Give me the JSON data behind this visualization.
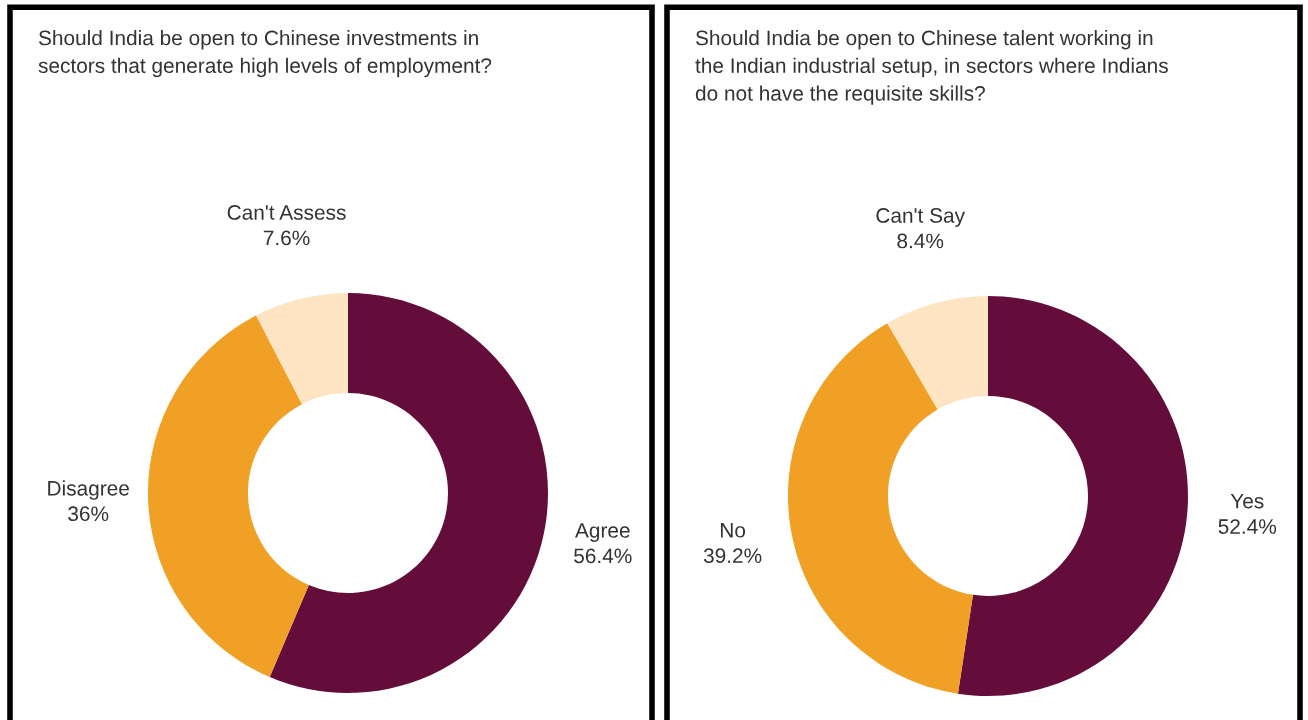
{
  "chart_data": [
    {
      "type": "donut",
      "title": "Should India be open to Chinese investments in sectors that generate high levels of employment?",
      "categories": [
        "Agree",
        "Disagree",
        "Can't Assess"
      ],
      "values": [
        56.4,
        36,
        7.6
      ],
      "colors": [
        "#640d3a",
        "#f0a125",
        "#fde5c3"
      ],
      "value_labels": [
        "56.4%",
        "36%",
        "7.6%"
      ]
    },
    {
      "type": "donut",
      "title": "Should India be open to Chinese talent working in the Indian industrial setup, in sectors where Indians do not have the requisite skills?",
      "categories": [
        "Yes",
        "No",
        "Can't Say"
      ],
      "values": [
        52.4,
        39.2,
        8.4
      ],
      "colors": [
        "#640d3a",
        "#f0a125",
        "#fde5c3"
      ],
      "value_labels": [
        "52.4%",
        "39.2%",
        "8.4%"
      ]
    }
  ]
}
